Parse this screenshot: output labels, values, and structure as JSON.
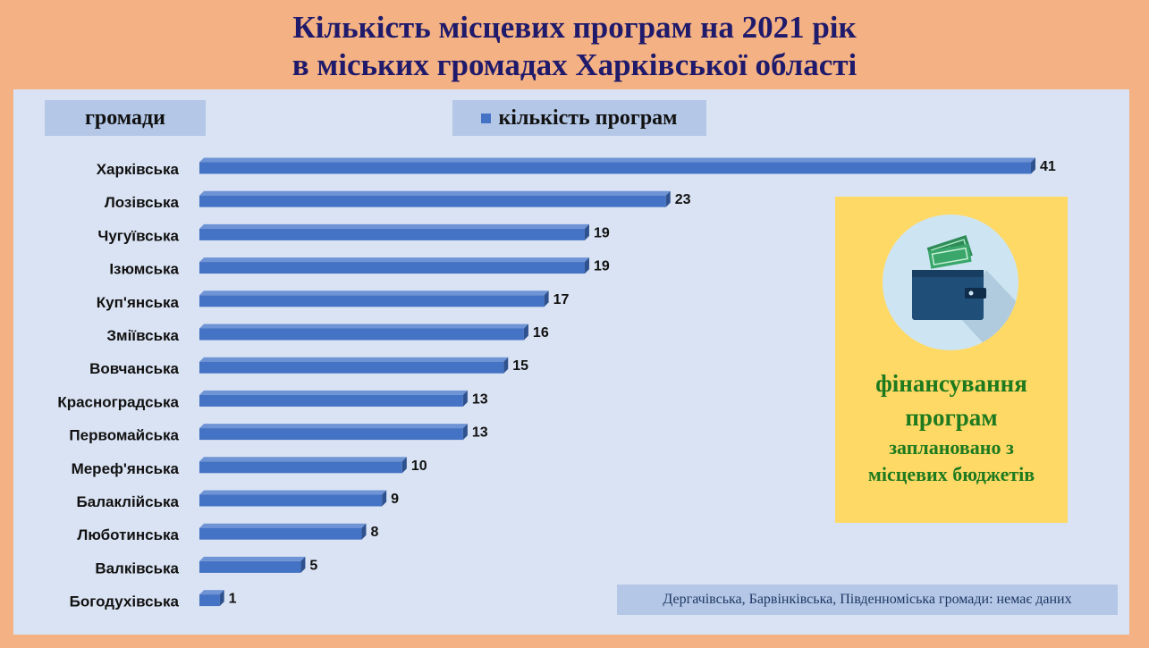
{
  "title": {
    "line1": "Кількість місцевих програм на 2021 рік",
    "line2": "в міських громадах Харківської області"
  },
  "category_header": "громади",
  "legend": {
    "label": "кількість програм",
    "color": "#4472c4"
  },
  "info_box": {
    "icon": "wallet-icon",
    "line1": "фінансування",
    "line2": "програм",
    "line3": "заплановано з",
    "line4": "місцевих бюджетів"
  },
  "note": "Дергачівська, Барвінківська, Південноміська громади: немає даних",
  "colors": {
    "background": "#f4b183",
    "panel": "#dae3f3",
    "header_box": "#b4c7e7",
    "bar": "#4472c4",
    "info_box": "#ffd966",
    "info_text": "#1e7a1e",
    "title": "#1f1a6b"
  },
  "chart_data": {
    "type": "bar",
    "orientation": "horizontal",
    "categories": [
      "Харківська",
      "Лозівська",
      "Чугуївська",
      "Ізюмська",
      "Куп'янська",
      "Зміївська",
      "Вовчанська",
      "Красноградська",
      "Первомайська",
      "Мереф'янська",
      "Балаклійська",
      "Люботинська",
      "Валківська",
      "Богодухівська"
    ],
    "series": [
      {
        "name": "кількість програм",
        "values": [
          41,
          23,
          19,
          19,
          17,
          16,
          15,
          13,
          13,
          10,
          9,
          8,
          5,
          1
        ]
      }
    ],
    "data_labels": true,
    "xlim": [
      0,
      41
    ],
    "legend_position": "top",
    "grid": false
  }
}
